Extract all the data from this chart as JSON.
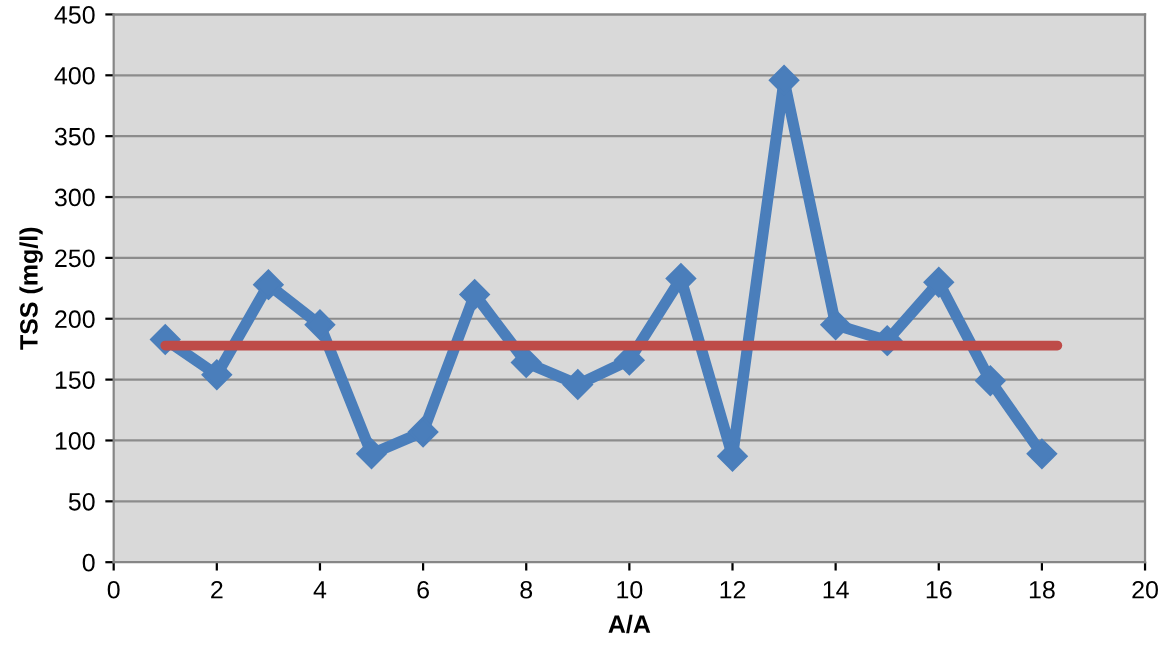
{
  "chart_data": {
    "type": "line",
    "xlabel": "A/A",
    "ylabel": "TSS (mg/l)",
    "xlim": [
      0,
      20
    ],
    "xticks": [
      0,
      2,
      4,
      6,
      8,
      10,
      12,
      14,
      16,
      18,
      20
    ],
    "ylim": [
      0,
      450
    ],
    "yticks": [
      0,
      50,
      100,
      150,
      200,
      250,
      300,
      350,
      400,
      450
    ],
    "grid": "y",
    "legend": false,
    "series": [
      {
        "color": "#4a7ebb",
        "marker": "diamond",
        "x": [
          1,
          2,
          3,
          4,
          5,
          6,
          7,
          8,
          9,
          10,
          11,
          12,
          13,
          14,
          15,
          16,
          17,
          18
        ],
        "values": [
          183,
          154,
          228,
          195,
          89,
          107,
          220,
          164,
          146,
          166,
          233,
          87,
          396,
          195,
          182,
          230,
          149,
          89
        ]
      },
      {
        "color": "#be4b48",
        "marker": "none",
        "x": [
          1,
          18.3
        ],
        "values": [
          178,
          178
        ]
      }
    ]
  }
}
